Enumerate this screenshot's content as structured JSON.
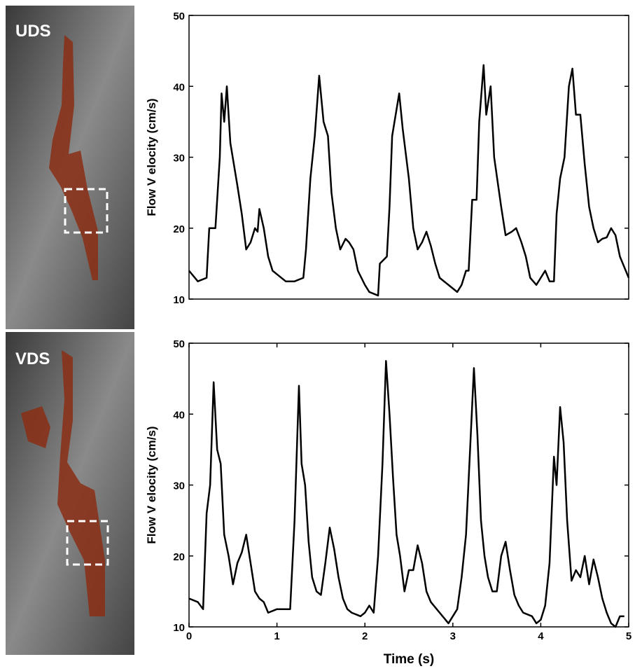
{
  "panels": [
    {
      "label": "UDS"
    },
    {
      "label": "VDS"
    }
  ],
  "chart_data": [
    {
      "type": "line",
      "y_label": "Flow V elocity  (cm/s)",
      "xlim": [
        0,
        5
      ],
      "ylim": [
        10,
        50
      ],
      "yticks": [
        10,
        20,
        30,
        40,
        50
      ],
      "series": [
        {
          "color": "#000000",
          "x": [
            0,
            0.1,
            0.2,
            0.23,
            0.3,
            0.35,
            0.37,
            0.4,
            0.43,
            0.47,
            0.55,
            0.6,
            0.65,
            0.7,
            0.75,
            0.78,
            0.8,
            0.85,
            0.9,
            0.95,
            1.0,
            1.1,
            1.2,
            1.3,
            1.33,
            1.38,
            1.43,
            1.48,
            1.53,
            1.58,
            1.62,
            1.67,
            1.72,
            1.78,
            1.82,
            1.87,
            1.92,
            2.0,
            2.05,
            2.15,
            2.17,
            2.25,
            2.28,
            2.31,
            2.35,
            2.39,
            2.43,
            2.5,
            2.55,
            2.6,
            2.65,
            2.7,
            2.75,
            2.8,
            2.85,
            2.95,
            3.05,
            3.1,
            3.15,
            3.18,
            3.22,
            3.27,
            3.3,
            3.35,
            3.38,
            3.43,
            3.47,
            3.55,
            3.6,
            3.67,
            3.72,
            3.78,
            3.83,
            3.88,
            3.95,
            4.0,
            4.05,
            4.1,
            4.15,
            4.18,
            4.22,
            4.27,
            4.32,
            4.36,
            4.4,
            4.45,
            4.5,
            4.55,
            4.6,
            4.65,
            4.7,
            4.75,
            4.8,
            4.85,
            4.9,
            5.0
          ],
          "values": [
            14,
            12.5,
            13,
            20,
            20,
            30,
            39,
            35,
            40,
            32,
            26,
            22,
            17,
            18,
            20,
            19.5,
            22.7,
            20,
            16,
            14,
            13.5,
            12.5,
            12.5,
            13,
            17,
            27,
            33,
            41.5,
            35,
            33,
            25,
            20,
            17,
            18.5,
            18,
            17,
            14,
            12,
            11,
            10.5,
            15,
            16,
            23,
            33,
            36,
            39,
            34,
            27,
            20,
            17,
            18,
            19.5,
            17.5,
            15,
            13,
            12,
            11,
            12,
            14,
            14,
            24,
            24,
            35,
            43,
            36,
            40,
            30,
            23,
            19,
            19.5,
            20,
            18,
            16,
            13,
            12,
            13,
            14,
            12.5,
            12.5,
            22,
            27,
            30,
            40,
            42.5,
            36,
            36,
            29,
            23,
            20,
            18,
            18.5,
            18.7,
            20,
            19,
            16,
            13
          ]
        }
      ]
    },
    {
      "type": "line",
      "y_label": "Flow V elocity  (cm/s)",
      "x_label": "Time  (s)",
      "xlim": [
        0,
        5
      ],
      "xticks": [
        0,
        1,
        2,
        3,
        4,
        5
      ],
      "ylim": [
        10,
        50
      ],
      "yticks": [
        10,
        20,
        30,
        40,
        50
      ],
      "series": [
        {
          "color": "#000000",
          "x": [
            0,
            0.1,
            0.16,
            0.2,
            0.24,
            0.28,
            0.32,
            0.36,
            0.4,
            0.45,
            0.5,
            0.55,
            0.6,
            0.65,
            0.7,
            0.75,
            0.8,
            0.85,
            0.9,
            1.0,
            1.1,
            1.15,
            1.2,
            1.25,
            1.28,
            1.32,
            1.36,
            1.4,
            1.45,
            1.5,
            1.55,
            1.6,
            1.65,
            1.7,
            1.75,
            1.8,
            1.85,
            1.95,
            2.0,
            2.05,
            2.1,
            2.15,
            2.2,
            2.24,
            2.28,
            2.32,
            2.36,
            2.4,
            2.45,
            2.5,
            2.55,
            2.6,
            2.65,
            2.7,
            2.75,
            2.85,
            2.95,
            3.0,
            3.05,
            3.1,
            3.15,
            3.2,
            3.24,
            3.28,
            3.32,
            3.36,
            3.4,
            3.45,
            3.5,
            3.55,
            3.6,
            3.65,
            3.7,
            3.75,
            3.8,
            3.9,
            3.95,
            4.0,
            4.05,
            4.1,
            4.15,
            4.18,
            4.22,
            4.26,
            4.3,
            4.35,
            4.4,
            4.45,
            4.5,
            4.55,
            4.6,
            4.65,
            4.7,
            4.75,
            4.8,
            4.85,
            4.9,
            4.95
          ],
          "values": [
            14,
            13.5,
            12.5,
            26,
            30,
            44.5,
            35,
            33,
            23,
            20,
            16,
            19,
            20.5,
            23,
            19,
            15,
            14,
            13.5,
            12,
            12.5,
            12.5,
            12.5,
            25,
            44,
            33,
            30,
            22,
            17,
            15,
            14.5,
            19,
            24,
            21,
            17,
            14,
            12.5,
            12,
            11.5,
            12,
            13,
            12,
            20,
            33,
            47.5,
            40,
            31,
            23,
            20,
            15,
            18,
            18,
            21.5,
            19,
            15,
            13.5,
            12,
            10.5,
            11.5,
            12.5,
            17,
            23,
            36,
            46.5,
            37,
            25,
            20,
            17,
            15,
            15,
            20,
            22,
            18,
            14.5,
            13,
            12,
            11.5,
            10.5,
            11,
            13,
            19,
            34,
            30,
            41,
            36,
            25,
            16.5,
            18,
            17,
            20,
            16,
            19.5,
            17,
            14,
            12,
            10.5,
            10,
            11.5,
            11.5
          ]
        }
      ]
    }
  ]
}
